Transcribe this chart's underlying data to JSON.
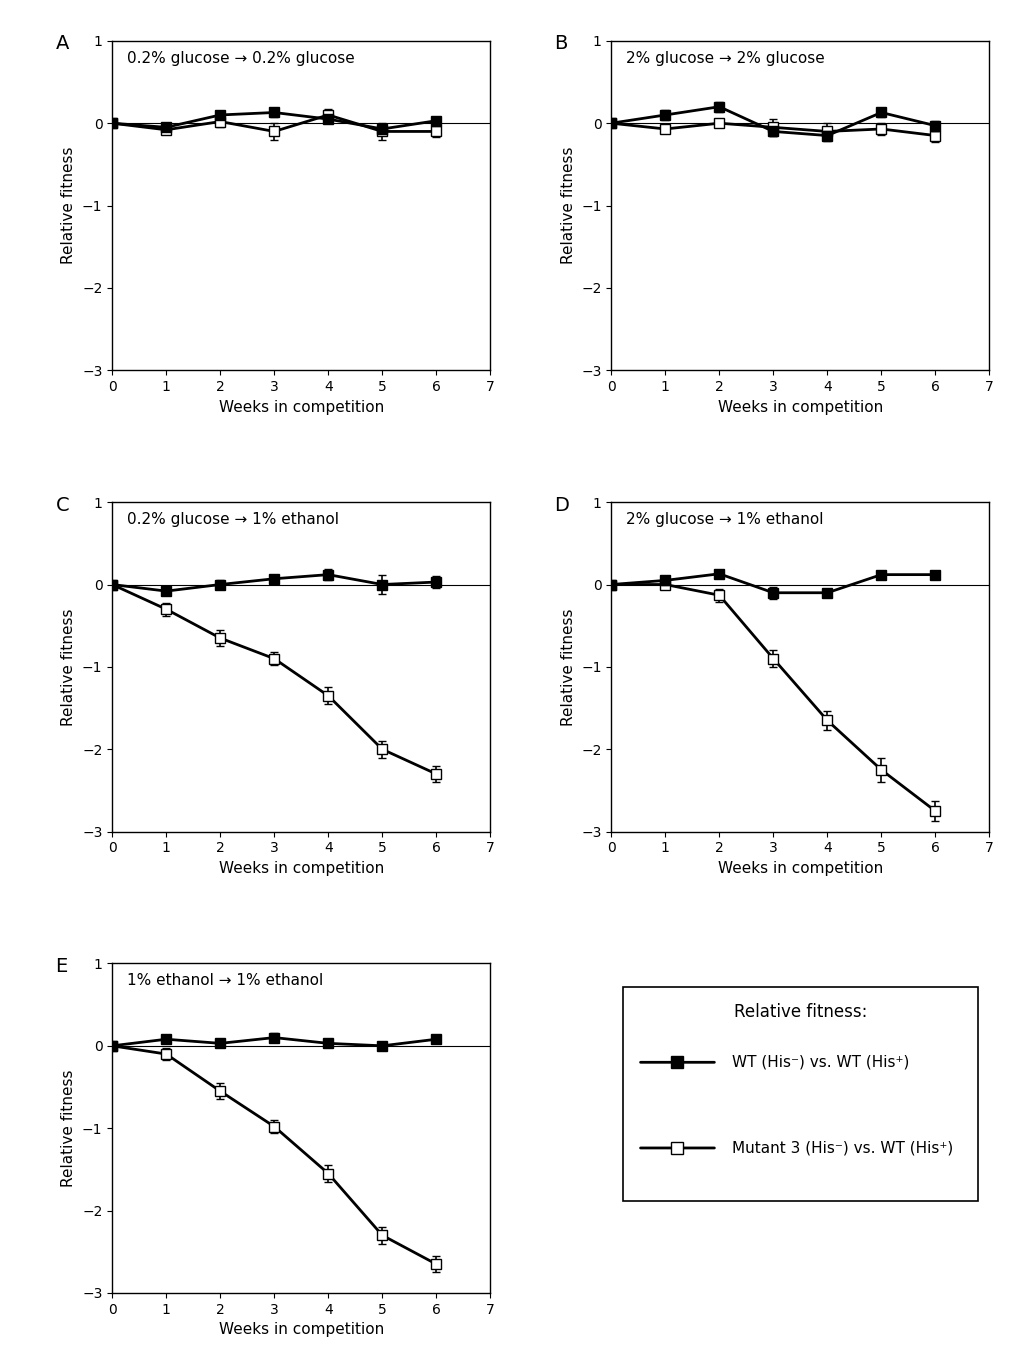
{
  "weeks": [
    0,
    1,
    2,
    3,
    4,
    5,
    6
  ],
  "panels": {
    "A": {
      "title": "0.2% glucose → 0.2% glucose",
      "wt_mean": [
        0,
        -0.05,
        0.1,
        0.13,
        0.05,
        -0.07,
        0.03
      ],
      "wt_err": [
        0,
        0.05,
        0.05,
        0.05,
        0.05,
        0.05,
        0.05
      ],
      "mut_mean": [
        0,
        -0.08,
        0.02,
        -0.1,
        0.1,
        -0.1,
        -0.1
      ],
      "mut_err": [
        0,
        0.05,
        0.07,
        0.1,
        0.07,
        0.1,
        0.07
      ]
    },
    "B": {
      "title": "2% glucose → 2% glucose",
      "wt_mean": [
        0,
        0.1,
        0.2,
        -0.1,
        -0.15,
        0.13,
        -0.03
      ],
      "wt_err": [
        0,
        0.06,
        0.06,
        0.06,
        0.06,
        0.06,
        0.06
      ],
      "mut_mean": [
        0,
        -0.07,
        0.0,
        -0.05,
        -0.1,
        -0.07,
        -0.15
      ],
      "mut_err": [
        0,
        0.05,
        0.05,
        0.1,
        0.1,
        0.07,
        0.08
      ]
    },
    "C": {
      "title": "0.2% glucose → 1% ethanol",
      "wt_mean": [
        0,
        -0.08,
        0.0,
        0.07,
        0.12,
        0.0,
        0.03
      ],
      "wt_err": [
        0,
        0.05,
        0.05,
        0.05,
        0.07,
        0.12,
        0.07
      ],
      "mut_mean": [
        0,
        -0.3,
        -0.65,
        -0.9,
        -1.35,
        -2.0,
        -2.3
      ],
      "mut_err": [
        0,
        0.08,
        0.1,
        0.08,
        0.1,
        0.1,
        0.1
      ]
    },
    "D": {
      "title": "2% glucose → 1% ethanol",
      "wt_mean": [
        0,
        0.05,
        0.13,
        -0.1,
        -0.1,
        0.12,
        0.12
      ],
      "wt_err": [
        0,
        0.05,
        0.05,
        0.07,
        0.05,
        0.05,
        0.05
      ],
      "mut_mean": [
        0,
        0.0,
        -0.13,
        -0.9,
        -1.65,
        -2.25,
        -2.75
      ],
      "mut_err": [
        0,
        0.05,
        0.08,
        0.1,
        0.12,
        0.15,
        0.12
      ]
    },
    "E": {
      "title": "1% ethanol → 1% ethanol",
      "wt_mean": [
        0,
        0.08,
        0.03,
        0.1,
        0.03,
        0.0,
        0.08
      ],
      "wt_err": [
        0,
        0.05,
        0.05,
        0.05,
        0.05,
        0.05,
        0.05
      ],
      "mut_mean": [
        0,
        -0.1,
        -0.55,
        -0.98,
        -1.55,
        -2.3,
        -2.65
      ],
      "mut_err": [
        0,
        0.07,
        0.1,
        0.08,
        0.1,
        0.1,
        0.1
      ]
    }
  },
  "ylim": [
    -3,
    1
  ],
  "yticks": [
    -3,
    -2,
    -1,
    0,
    1
  ],
  "xlim": [
    0,
    7
  ],
  "xticks": [
    0,
    1,
    2,
    3,
    4,
    5,
    6,
    7
  ],
  "xlabel": "Weeks in competition",
  "ylabel": "Relative fitness",
  "legend_label_wt": "WT (His⁻) vs. WT (His⁺)",
  "legend_label_mut": "Mutant 3 (His⁻) vs. WT (His⁺)",
  "legend_title": "Relative fitness:",
  "markersize": 7,
  "linewidth": 2.0,
  "capsize": 3,
  "elinewidth": 1.2,
  "panel_label_fontsize": 14,
  "axis_fontsize": 11,
  "tick_fontsize": 10,
  "title_fontsize": 11
}
